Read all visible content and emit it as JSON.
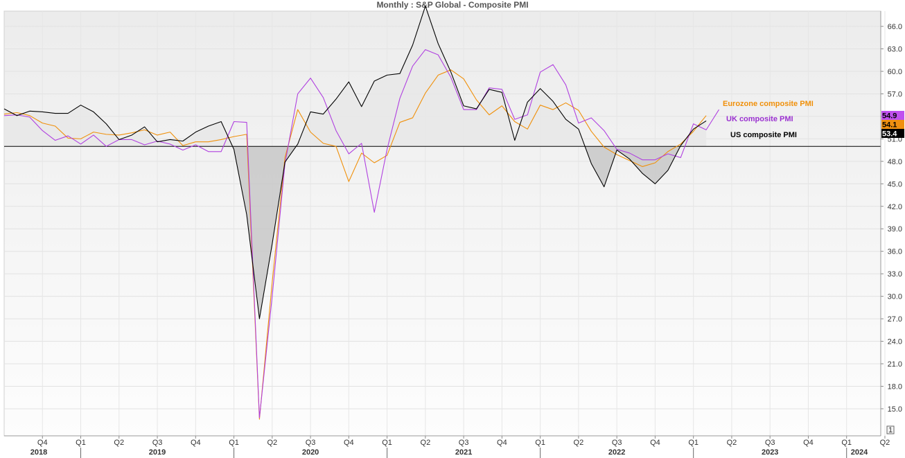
{
  "chart_data": {
    "type": "line",
    "title": "Monthly : S&P Global - Composite PMI",
    "ylim": [
      12.5,
      68.5
    ],
    "y_ticks": [
      15.0,
      18.0,
      21.0,
      24.0,
      27.0,
      30.0,
      33.0,
      36.0,
      39.0,
      42.0,
      45.0,
      48.0,
      51.0,
      54.0,
      57.0,
      60.0,
      63.0,
      66.0
    ],
    "reference_line": 50,
    "x_start": "2018-07",
    "quarter_labels": [
      "Q4",
      "Q1",
      "Q2",
      "Q3",
      "Q4",
      "Q1",
      "Q2",
      "Q3",
      "Q4",
      "Q1",
      "Q2",
      "Q3",
      "Q4",
      "Q1",
      "Q2",
      "Q3",
      "Q4",
      "Q1",
      "Q2",
      "Q3",
      "Q4",
      "Q1",
      "Q2"
    ],
    "year_labels": [
      "2018",
      "2019",
      "2020",
      "2021",
      "2022",
      "2023",
      "2024"
    ],
    "corner_label": "1",
    "grid": true,
    "series": [
      {
        "name": "US composite PMI",
        "color": "#000000",
        "last_value": "53.4",
        "values": [
          55.0,
          54.1,
          54.7,
          54.6,
          54.4,
          54.4,
          55.5,
          54.6,
          53.0,
          50.9,
          51.5,
          52.6,
          50.6,
          50.9,
          50.7,
          51.9,
          52.7,
          53.3,
          49.6,
          40.9,
          27.0,
          37.0,
          47.9,
          50.3,
          54.6,
          54.3,
          56.3,
          58.6,
          55.3,
          58.7,
          59.5,
          59.7,
          63.5,
          68.7,
          63.7,
          59.9,
          55.4,
          55.0,
          57.6,
          57.2,
          50.8,
          55.9,
          57.7,
          56.0,
          53.6,
          52.3,
          47.7,
          44.6,
          49.5,
          48.3,
          46.4,
          45.0,
          46.8,
          50.1,
          52.3,
          53.4
        ]
      },
      {
        "name": "Eurozone composite PMI",
        "color": "#f0900a",
        "last_value": "54.1",
        "values": [
          54.3,
          54.5,
          54.1,
          53.1,
          52.7,
          51.1,
          51.0,
          51.9,
          51.6,
          51.5,
          51.8,
          52.2,
          51.5,
          51.9,
          50.1,
          50.6,
          50.6,
          50.9,
          51.3,
          51.6,
          13.6,
          31.9,
          48.5,
          54.9,
          51.9,
          50.4,
          50.0,
          45.3,
          49.1,
          47.8,
          48.8,
          53.2,
          53.8,
          57.1,
          59.5,
          60.2,
          59.0,
          56.2,
          54.2,
          55.4,
          53.3,
          52.3,
          55.5,
          54.9,
          55.8,
          54.8,
          52.0,
          49.9,
          48.9,
          48.1,
          47.3,
          47.8,
          49.3,
          50.3,
          52.0,
          54.1
        ]
      },
      {
        "name": "UK composite PMI",
        "color": "#b040e0",
        "last_value": "54.9",
        "values": [
          54.1,
          54.2,
          53.9,
          52.1,
          50.8,
          51.4,
          50.3,
          51.5,
          50.0,
          50.9,
          50.9,
          50.2,
          50.7,
          50.3,
          49.5,
          50.2,
          49.3,
          49.3,
          53.3,
          53.2,
          13.8,
          30.0,
          47.7,
          57.0,
          59.1,
          56.5,
          52.1,
          49.0,
          50.4,
          41.2,
          49.6,
          56.4,
          60.7,
          62.9,
          62.2,
          59.2,
          54.9,
          54.9,
          57.8,
          57.6,
          53.6,
          54.2,
          59.9,
          60.9,
          58.2,
          53.1,
          53.8,
          52.1,
          49.6,
          49.1,
          48.2,
          48.2,
          49.0,
          48.5,
          53.0,
          52.2,
          54.9
        ]
      }
    ]
  }
}
